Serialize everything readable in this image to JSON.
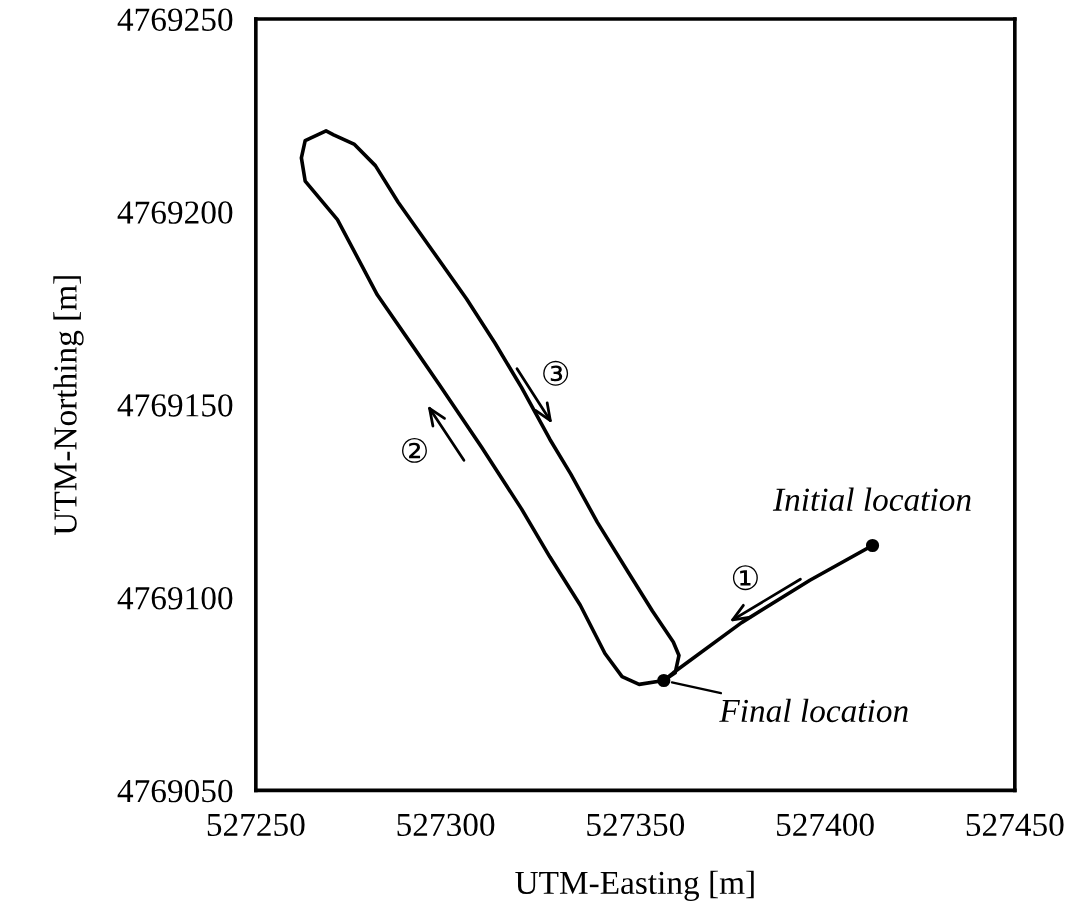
{
  "chart_data": {
    "type": "line",
    "xlabel": "UTM-Easting [m]",
    "ylabel": "UTM-Northing [m]",
    "xlim": [
      527250,
      527450
    ],
    "xticks": [
      527250,
      527300,
      527350,
      527400,
      527450
    ],
    "ylim": [
      4769050,
      4769250
    ],
    "yticks": [
      4769050,
      4769100,
      4769150,
      4769200,
      4769250
    ],
    "grid": false,
    "legend": false,
    "series": [
      {
        "color": "#000000",
        "marker": "none",
        "line_style": "solid",
        "x": [
          527412.5,
          527396,
          527378,
          527360,
          527357.5,
          527351,
          527346.5,
          527342,
          527335.5,
          527327.5,
          527320,
          527309.5,
          527298.5,
          527291.5,
          527282,
          527271.5,
          527263,
          527262,
          527263,
          527268.5,
          527270.5,
          527276,
          527281.5,
          527287.5,
          527296.5,
          527305.5,
          527313,
          527320,
          527327.5,
          527333,
          527340,
          527348.5,
          527354.5,
          527360,
          527361.5,
          527360.5,
          527357.5
        ],
        "values": [
          4769113.5,
          4769104.5,
          4769093.5,
          4769080.5,
          4769078.5,
          4769077.5,
          4769079.5,
          4769085.5,
          4769098,
          4769110.5,
          4769123,
          4769139,
          4769155,
          4769165,
          4769178.5,
          4769198,
          4769208,
          4769214,
          4769218.5,
          4769221,
          4769220,
          4769217.5,
          4769212,
          4769202.5,
          4769190,
          4769177.5,
          4769166,
          4769154.5,
          4769141,
          4769132,
          4769119.5,
          4769106,
          4769096.5,
          4769088.5,
          4769085,
          4769080.5,
          4769078.5
        ]
      },
      {
        "type": "scatter",
        "color": "#000000",
        "marker": "circle",
        "x": [
          527412.5,
          527357.5
        ],
        "values": [
          4769113.5,
          4769078.5
        ]
      }
    ],
    "annotations": [
      {
        "text": "Initial location",
        "x": 527412.5,
        "y": 4769113.5
      },
      {
        "text": "Final location",
        "x": 527357.5,
        "y": 4769078.5
      },
      "①",
      "②",
      "③"
    ]
  }
}
